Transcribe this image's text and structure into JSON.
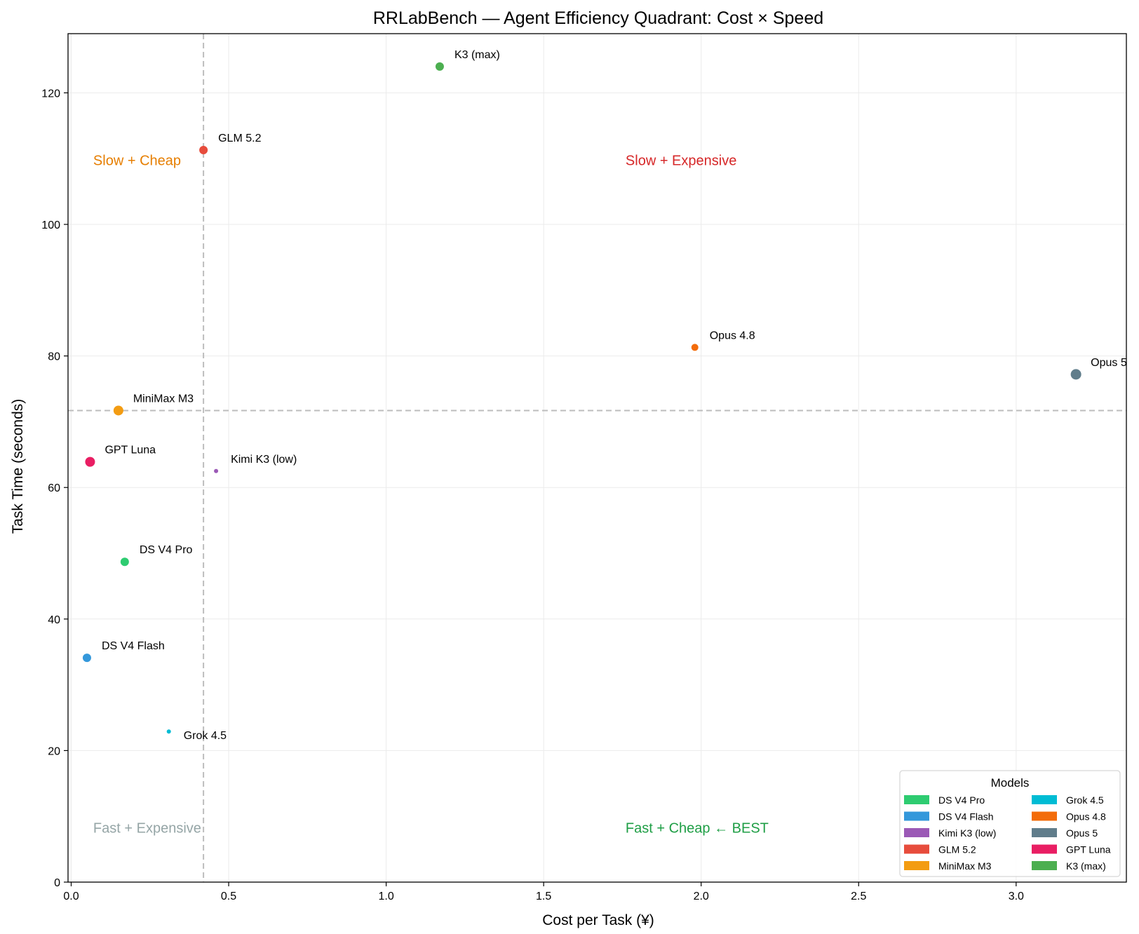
{
  "chart_data": {
    "type": "scatter",
    "title": "RRLabBench — Agent Efficiency Quadrant: Cost × Speed",
    "xlabel": "Cost per Task (¥)",
    "ylabel": "Task Time (seconds)",
    "xlim": [
      -0.01,
      3.35
    ],
    "ylim": [
      0,
      129
    ],
    "xticks": [
      0.0,
      0.5,
      1.0,
      1.5,
      2.0,
      2.5,
      3.0
    ],
    "xtick_labels": [
      "0.0",
      "0.5",
      "1.0",
      "1.5",
      "2.0",
      "2.5",
      "3.0"
    ],
    "yticks": [
      0,
      20,
      40,
      60,
      80,
      100,
      120
    ],
    "ytick_labels": [
      "0",
      "20",
      "40",
      "60",
      "80",
      "100",
      "120"
    ],
    "grid": true,
    "reference_lines": {
      "x": 0.42,
      "y": 71.7
    },
    "points": [
      {
        "name": "DS V4 Pro",
        "x": 0.17,
        "y": 48.7,
        "color": "#2ecc71",
        "size": "medium"
      },
      {
        "name": "DS V4 Flash",
        "x": 0.05,
        "y": 34.1,
        "color": "#3498db",
        "size": "medium"
      },
      {
        "name": "Kimi K3 (low)",
        "x": 0.46,
        "y": 62.5,
        "color": "#9b59b6",
        "size": "tiny"
      },
      {
        "name": "GLM 5.2",
        "x": 0.42,
        "y": 111.3,
        "color": "#e74c3c",
        "size": "medium"
      },
      {
        "name": "MiniMax M3",
        "x": 0.15,
        "y": 71.7,
        "color": "#f39c12",
        "size": "large"
      },
      {
        "name": "Grok 4.5",
        "x": 0.31,
        "y": 22.9,
        "color": "#00bcd4",
        "size": "tiny"
      },
      {
        "name": "Opus 4.8",
        "x": 1.98,
        "y": 81.3,
        "color": "#f36c0a",
        "size": "small"
      },
      {
        "name": "Opus 5",
        "x": 3.19,
        "y": 77.2,
        "color": "#607d8b",
        "size": "xlarge"
      },
      {
        "name": "GPT Luna",
        "x": 0.06,
        "y": 63.9,
        "color": "#e91e63",
        "size": "large"
      },
      {
        "name": "K3 (max)",
        "x": 1.17,
        "y": 124.0,
        "color": "#4caf50",
        "size": "medium"
      }
    ],
    "quadrant_labels": [
      {
        "text": "Slow + Cheap",
        "x": 0.07,
        "y": 109.0,
        "color": "#e67e00"
      },
      {
        "text": "Slow + Expensive",
        "x": 1.76,
        "y": 109.0,
        "color": "#d62728"
      },
      {
        "text": "Fast + Expensive",
        "x": 0.07,
        "y": 7.5,
        "color": "#95a5a6"
      },
      {
        "text": "Fast + Cheap  ← BEST",
        "x": 1.76,
        "y": 7.5,
        "color": "#1e9e45"
      }
    ],
    "legend": {
      "title": "Models",
      "placement": "lower-right",
      "columns": 2,
      "entries": [
        "DS V4 Pro",
        "DS V4 Flash",
        "Kimi K3 (low)",
        "GLM 5.2",
        "MiniMax M3",
        "Grok 4.5",
        "Opus 4.8",
        "Opus 5",
        "GPT Luna",
        "K3 (max)"
      ]
    }
  }
}
